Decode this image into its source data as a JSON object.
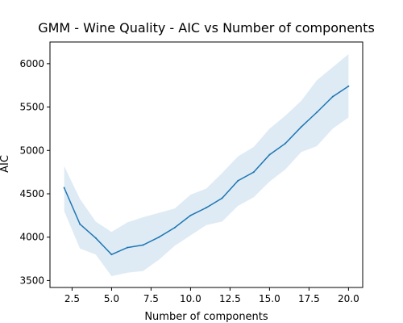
{
  "chart_data": {
    "type": "line",
    "title": "GMM - Wine Quality - AIC vs Number of components",
    "xlabel": "Number of components",
    "ylabel": "AIC",
    "xlim": [
      1.1,
      20.9
    ],
    "ylim": [
      3420,
      6250
    ],
    "x_ticks": [
      "2.5",
      "5.0",
      "7.5",
      "10.0",
      "12.5",
      "15.0",
      "17.5",
      "20.0"
    ],
    "y_ticks": [
      "3500",
      "4000",
      "4500",
      "5000",
      "5500",
      "6000"
    ],
    "grid": false,
    "colors": {
      "line": "#1f77b4",
      "band": "#1f77b4"
    },
    "series": [
      {
        "x": [
          2,
          3,
          4,
          5,
          6,
          7,
          8,
          9,
          10,
          11,
          12,
          13,
          14,
          15,
          16,
          17,
          18,
          19,
          20
        ],
        "y": [
          4570,
          4150,
          3990,
          3800,
          3880,
          3910,
          4000,
          4110,
          4250,
          4340,
          4450,
          4650,
          4750,
          4950,
          5080,
          5270,
          5440,
          5620,
          5740
        ],
        "lower": [
          4300,
          3870,
          3800,
          3550,
          3590,
          3610,
          3740,
          3900,
          4020,
          4140,
          4180,
          4360,
          4460,
          4640,
          4780,
          4980,
          5050,
          5250,
          5380
        ],
        "upper": [
          4820,
          4440,
          4180,
          4060,
          4170,
          4230,
          4280,
          4330,
          4490,
          4560,
          4740,
          4930,
          5040,
          5250,
          5400,
          5570,
          5810,
          5960,
          6110
        ]
      }
    ]
  }
}
